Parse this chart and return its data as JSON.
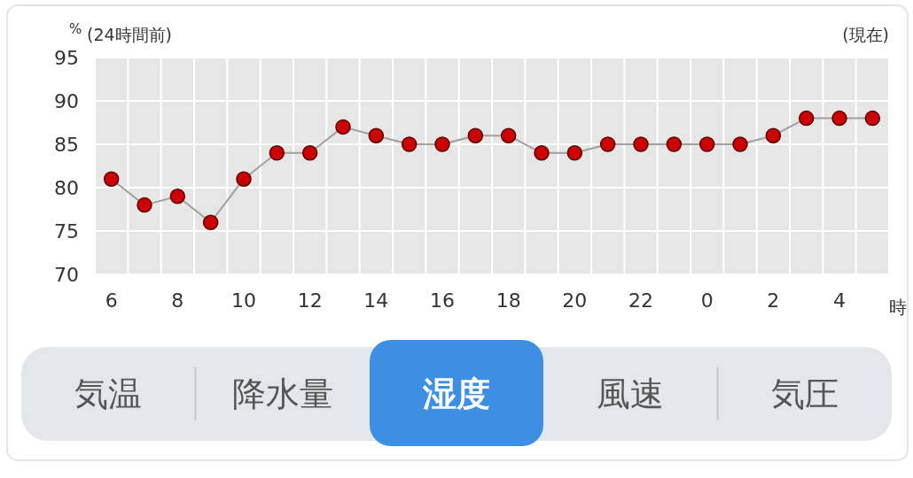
{
  "chart_data": [
    {
      "type": "line",
      "ylabel": "%",
      "xlabel": "時",
      "annotations": [
        "(24時間前)",
        "(現在)"
      ],
      "categories": [
        "6",
        null,
        "8",
        null,
        "10",
        null,
        "12",
        null,
        "14",
        null,
        "16",
        null,
        "18",
        null,
        "20",
        null,
        "22",
        null,
        "0",
        null,
        "2",
        null,
        "4",
        null
      ],
      "series": [
        {
          "color": "#cc0000",
          "values": [
            81,
            78,
            79,
            76,
            81,
            84,
            84,
            87,
            86,
            85,
            85,
            86,
            86,
            84,
            84,
            85,
            85,
            85,
            85,
            85,
            86,
            88,
            88,
            88
          ]
        }
      ],
      "ylim": [
        70,
        95
      ],
      "yticks": [
        70,
        75,
        80,
        85,
        90,
        95
      ],
      "grid": true,
      "marker": "circle",
      "line_style": "solid"
    },
    {
      "type": "other",
      "annotations": [
        "気温",
        "降水量",
        "湿度",
        "風速",
        "気圧"
      ]
    }
  ]
}
